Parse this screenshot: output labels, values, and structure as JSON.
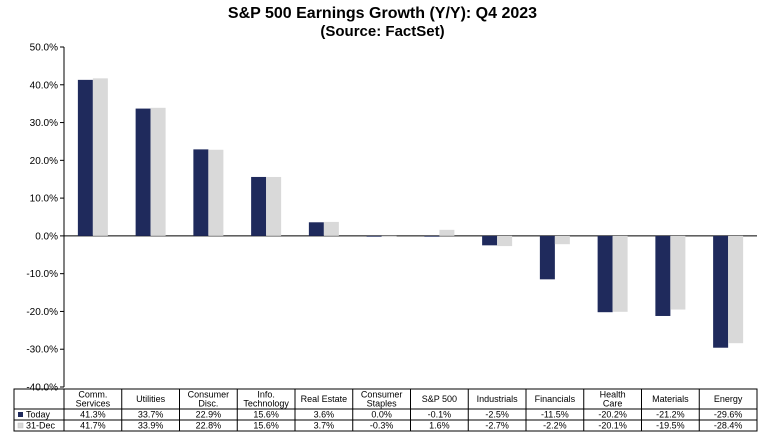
{
  "chart_data": {
    "type": "bar",
    "title": "S&P 500 Earnings Growth (Y/Y): Q4 2023",
    "subtitle": "(Source: FactSet)",
    "categories": [
      [
        "Comm.",
        "Services"
      ],
      [
        "Utilities"
      ],
      [
        "Consumer",
        "Disc."
      ],
      [
        "Info.",
        "Technology"
      ],
      [
        "Real Estate"
      ],
      [
        "Consumer",
        "Staples"
      ],
      [
        "S&P 500"
      ],
      [
        "Industrials"
      ],
      [
        "Financials"
      ],
      [
        "Health",
        "Care"
      ],
      [
        "Materials"
      ],
      [
        "Energy"
      ]
    ],
    "series": [
      {
        "name": "Today",
        "color": "#1f2a5c",
        "values": [
          41.3,
          33.7,
          22.9,
          15.6,
          3.6,
          0.0,
          -0.1,
          -2.5,
          -11.5,
          -20.2,
          -21.2,
          -29.6
        ]
      },
      {
        "name": "31-Dec",
        "color": "#d9d9d9",
        "values": [
          41.7,
          33.9,
          22.8,
          15.6,
          3.7,
          -0.3,
          1.6,
          -2.7,
          -2.2,
          -20.1,
          -19.5,
          -28.4
        ]
      }
    ],
    "ylim": [
      -40,
      50
    ],
    "yticks": [
      -40,
      -30,
      -20,
      -10,
      0,
      10,
      20,
      30,
      40,
      50
    ],
    "legend": "data-table",
    "grid": false
  }
}
